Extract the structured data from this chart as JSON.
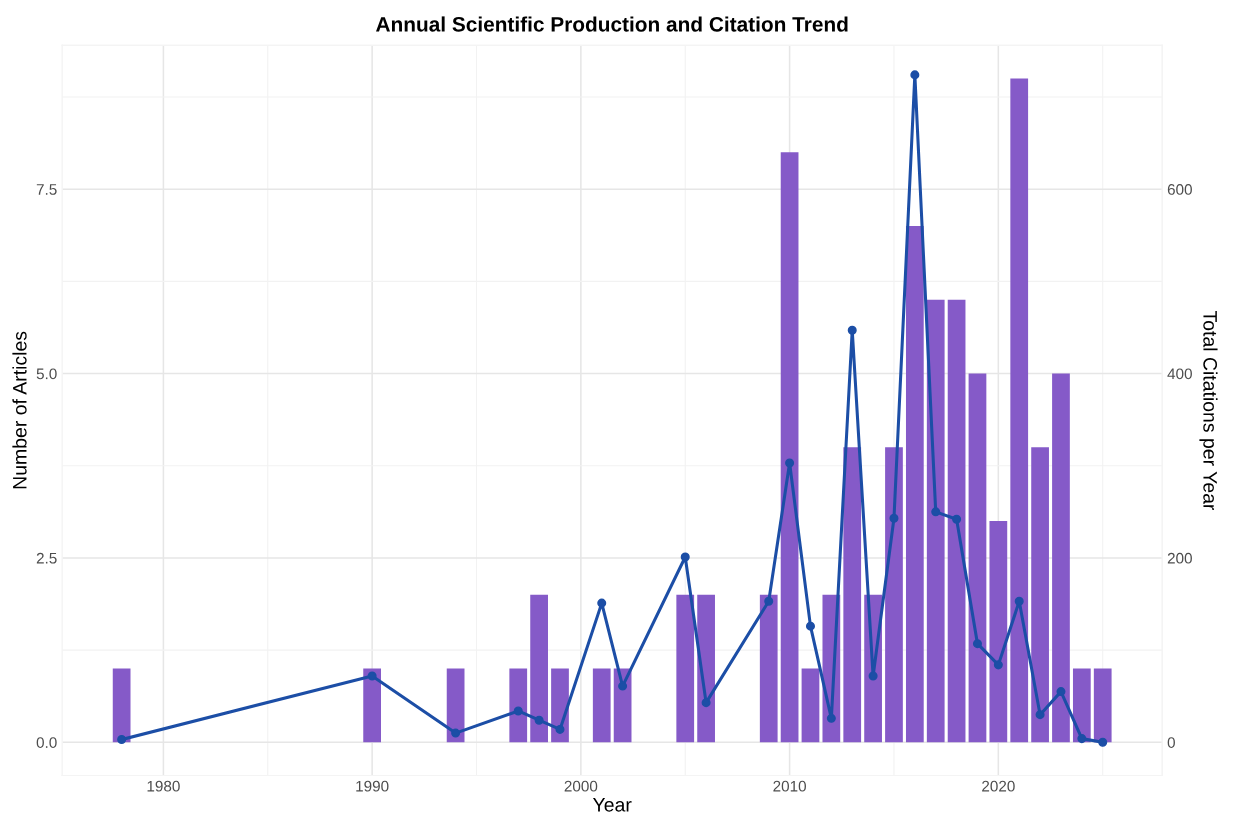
{
  "chart_data": {
    "type": "bar",
    "title": "Annual Scientific Production and Citation Trend",
    "xlabel": "Year",
    "ylabel": "Number of Articles",
    "y2label": "Total Citations per Year",
    "x": [
      1978,
      1990,
      1994,
      1997,
      1998,
      1999,
      2001,
      2002,
      2005,
      2006,
      2009,
      2010,
      2011,
      2012,
      2013,
      2014,
      2015,
      2016,
      2017,
      2018,
      2019,
      2020,
      2021,
      2022,
      2023,
      2024,
      2025
    ],
    "series": [
      {
        "color": "#855ac8",
        "values": [
          1,
          1,
          1,
          1,
          2,
          1,
          1,
          1,
          2,
          2,
          2,
          8,
          1,
          2,
          4,
          2,
          4,
          7,
          6,
          6,
          5,
          3,
          9,
          4,
          5,
          1,
          1
        ]
      },
      {
        "type": "line",
        "axis": "y2",
        "color": "#1c4ea6",
        "marker": "circle",
        "line_style": "solid",
        "values": [
          3,
          72,
          10,
          34,
          24,
          14,
          151,
          61,
          201,
          43,
          153,
          303,
          126,
          26,
          447,
          72,
          243,
          724,
          250,
          242,
          107,
          84,
          153,
          30,
          55,
          4,
          0
        ]
      }
    ],
    "xlim": [
      1975.15,
      2027.85
    ],
    "xticks": [
      1980,
      {
        "value": 1985,
        "label": null
      },
      1990,
      {
        "value": 1995,
        "label": null
      },
      2000,
      {
        "value": 2005,
        "label": null
      },
      2010,
      {
        "value": 2015,
        "label": null
      },
      2020,
      {
        "value": 2025,
        "label": null
      }
    ],
    "ylim": [
      -0.45,
      9.45
    ],
    "yticks": [
      {
        "value": 0,
        "label": "0.0"
      },
      {
        "value": 1.25,
        "label": null
      },
      2.5,
      {
        "value": 3.75,
        "label": null
      },
      {
        "value": 5,
        "label": "5.0"
      },
      {
        "value": 6.25,
        "label": null
      },
      7.5,
      {
        "value": 8.75,
        "label": null
      }
    ],
    "y2lim": [
      -36,
      756
    ],
    "y2ticks": [
      0,
      200,
      400,
      600
    ],
    "grid": true,
    "legend": false
  }
}
